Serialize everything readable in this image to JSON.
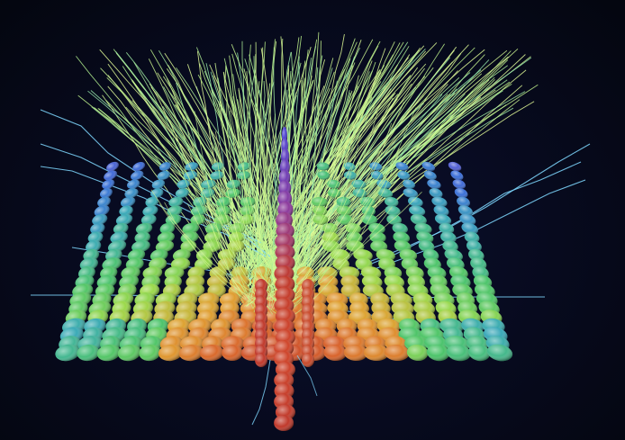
{
  "scene": {
    "background_color": "#070a1e",
    "glyph_palette": [
      "#c0392b",
      "#d9652b",
      "#e0a030",
      "#9bd94a",
      "#4cc46a",
      "#3aa9b8",
      "#3a6fd8",
      "#6a4fd0"
    ],
    "streamline_palette": [
      "#6fc6ff",
      "#7fe0c0",
      "#b8f08a",
      "#e6ff9a"
    ]
  }
}
